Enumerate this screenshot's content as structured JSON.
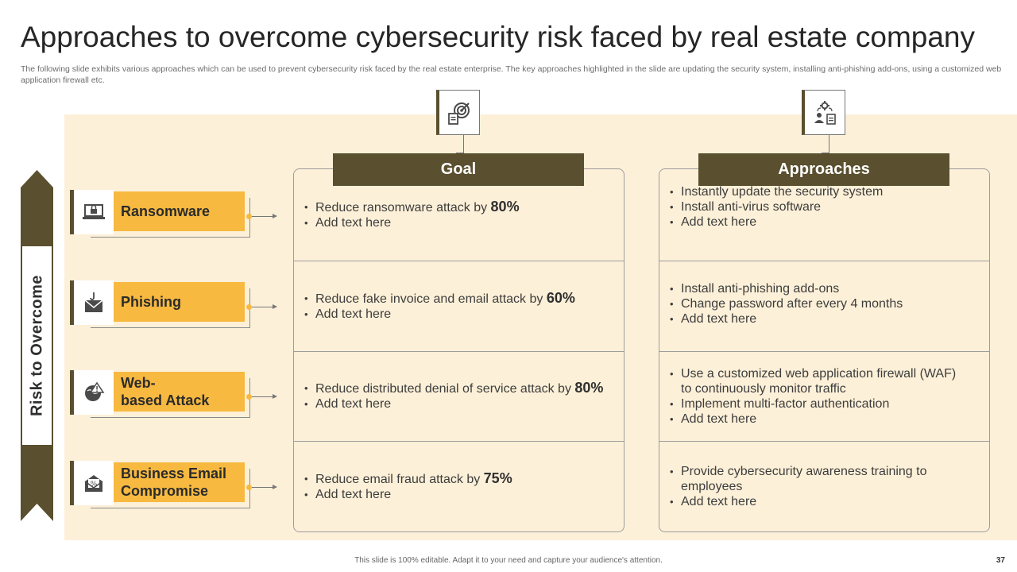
{
  "title": "Approaches to overcome cybersecurity risk faced by real estate company",
  "description": "The following slide exhibits various approaches which can be used to prevent cybersecurity risk faced by the real estate enterprise. The key approaches highlighted in the slide are updating the security system, installing anti-phishing add-ons, using a customized web application firewall etc.",
  "side_label": "Risk to Overcome",
  "colors": {
    "dark": "#5a4f2e",
    "accent": "#f7b940",
    "panel": "#fdf0d8"
  },
  "risks": [
    {
      "label": "Ransomware",
      "icon": "laptop-lock-icon"
    },
    {
      "label": "Phishing",
      "icon": "phishing-envelope-icon"
    },
    {
      "label_line1": "Web-",
      "label_line2": "based Attack",
      "icon": "globe-warning-icon"
    },
    {
      "label_line1": "Business Email",
      "label_line2": "Compromise",
      "icon": "email-percent-icon"
    }
  ],
  "goal": {
    "header": "Goal",
    "icon": "target-document-icon",
    "rows": [
      {
        "text": "Reduce ransomware attack by ",
        "pct": "80%",
        "extra": "Add text here"
      },
      {
        "text": "Reduce fake invoice and email attack by ",
        "pct": "60%",
        "extra": "Add text here"
      },
      {
        "text": "Reduce distributed denial of service attack by ",
        "pct": "80%",
        "extra": "Add text here"
      },
      {
        "text": "Reduce email fraud attack by ",
        "pct": "75%",
        "extra": "Add text here"
      }
    ]
  },
  "approaches": {
    "header": "Approaches",
    "icon": "user-gear-icon",
    "rows": [
      [
        "Instantly  update the security system",
        "Install anti-virus software",
        "Add text here"
      ],
      [
        "Install anti-phishing add-ons",
        "Change password after every  4 months",
        "Add text here"
      ],
      [
        "Use a customized web application firewall (WAF) to continuously  monitor traffic",
        "Implement multi-factor authentication",
        "Add text here"
      ],
      [
        "Provide cybersecurity  awareness training to employees",
        "Add text here"
      ]
    ]
  },
  "footer": "This slide is 100% editable.  Adapt it to your need and capture your audience's attention.",
  "page_number": "37"
}
